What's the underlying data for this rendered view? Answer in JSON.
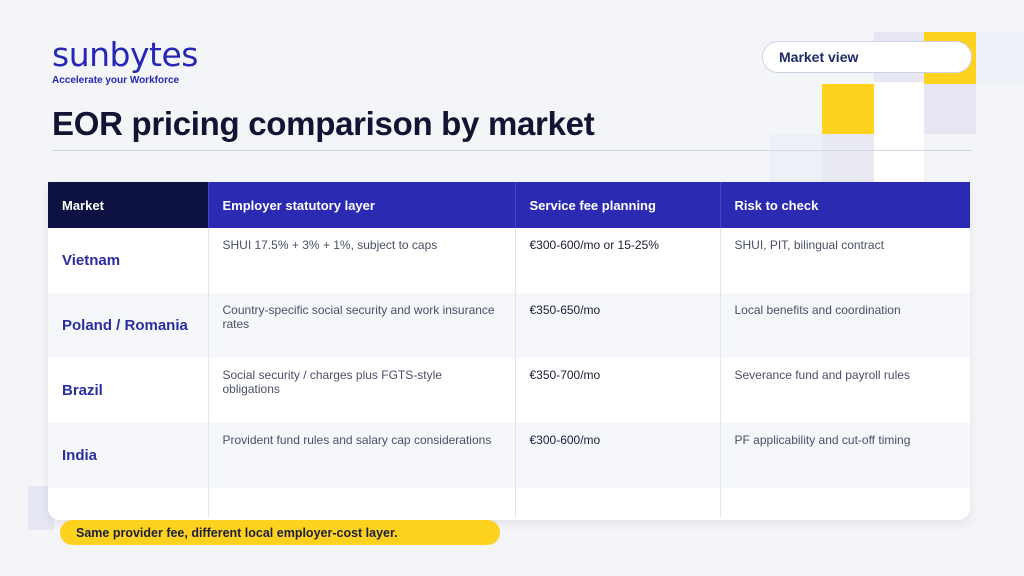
{
  "brand": {
    "name": "sunbytes",
    "tagline": "Accelerate your Workforce",
    "accent_color": "#2727b5",
    "highlight_color": "#ffd21f"
  },
  "header": {
    "pill_label": "Market view",
    "title": "EOR pricing comparison by market"
  },
  "table": {
    "columns": [
      "Market",
      "Employer statutory layer",
      "Service fee planning",
      "Risk to check"
    ],
    "rows": [
      {
        "market": "Vietnam",
        "statutory": "SHUI 17.5% + 3% + 1%, subject to caps",
        "fee": "€300-600/mo or 15-25%",
        "risk": "SHUI, PIT, bilingual contract"
      },
      {
        "market": "Poland / Romania",
        "statutory": "Country-specific social security and work insurance rates",
        "fee": "€350-650/mo",
        "risk": "Local benefits and coordination"
      },
      {
        "market": "Brazil",
        "statutory": "Social security / charges plus FGTS-style obligations",
        "fee": "€350-700/mo",
        "risk": "Severance fund and payroll rules"
      },
      {
        "market": "India",
        "statutory": "Provident fund rules and salary cap considerations",
        "fee": "€300-600/mo",
        "risk": "PF applicability and cut-off timing"
      }
    ]
  },
  "footer": {
    "note": "Same provider fee, different local employer-cost layer."
  }
}
